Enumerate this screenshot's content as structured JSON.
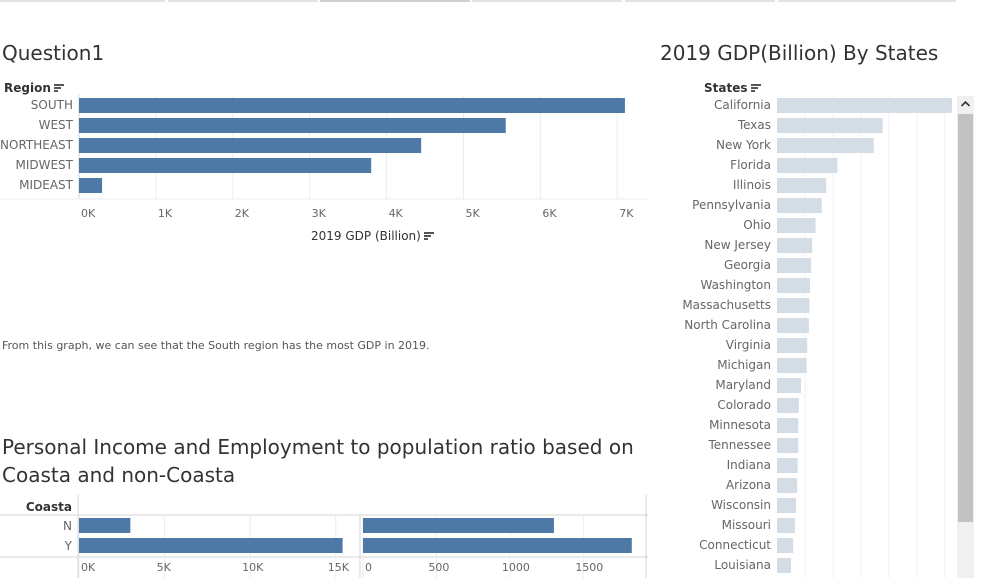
{
  "chart_data": [
    {
      "type": "bar",
      "orientation": "horizontal",
      "title": "Question1",
      "category_header": "Region",
      "xlabel": "2019 GDP (Billion)",
      "categories": [
        "SOUTH",
        "WEST",
        "NORTHEAST",
        "MIDWEST",
        "MIDEAST"
      ],
      "values": [
        7100,
        5550,
        4450,
        3800,
        300
      ],
      "xlim": [
        0,
        7400
      ],
      "xticks": [
        0,
        1000,
        2000,
        3000,
        4000,
        5000,
        6000,
        7000
      ],
      "xtick_labels": [
        "0K",
        "1K",
        "2K",
        "3K",
        "4K",
        "5K",
        "6K",
        "7K"
      ],
      "grid": true,
      "color": "#4e79a7"
    },
    {
      "type": "bar",
      "orientation": "horizontal",
      "title": "2019 GDP(Billion) By States",
      "category_header": "States",
      "categories": [
        "California",
        "Texas",
        "New York",
        "Florida",
        "Illinois",
        "Pennsylvania",
        "Ohio",
        "New Jersey",
        "Georgia",
        "Washington",
        "Massachusetts",
        "North Carolina",
        "Virginia",
        "Michigan",
        "Maryland",
        "Colorado",
        "Minnesota",
        "Tennessee",
        "Indiana",
        "Arizona",
        "Wisconsin",
        "Missouri",
        "Connecticut",
        "Louisiana"
      ],
      "values": [
        3130,
        1890,
        1730,
        1080,
        880,
        800,
        690,
        630,
        610,
        590,
        580,
        570,
        540,
        530,
        430,
        390,
        380,
        380,
        370,
        360,
        340,
        320,
        290,
        250
      ],
      "xlim": [
        0,
        3200
      ],
      "grid": true,
      "color": "#d4dde6"
    },
    {
      "type": "bar",
      "orientation": "horizontal",
      "title": "Personal Income and Employment to population ratio based on Coasta and non-Coasta",
      "category_header": "Coasta",
      "categories": [
        "N",
        "Y"
      ],
      "panels": [
        {
          "values": [
            3000,
            15400
          ],
          "xlim": [
            0,
            16300
          ],
          "xticks": [
            0,
            5000,
            10000,
            15000
          ],
          "xtick_labels": [
            "0K",
            "5K",
            "10K",
            "15K"
          ]
        },
        {
          "values": [
            1300,
            1830
          ],
          "xlim": [
            0,
            1920
          ],
          "xticks": [
            0,
            500,
            1000,
            1500
          ],
          "xtick_labels": [
            "0",
            "500",
            "1000",
            "1500"
          ]
        }
      ],
      "grid": true,
      "color": "#4e79a7"
    }
  ],
  "note": "From this graph, we can see that the South region has the most GDP in 2019.",
  "colors": {
    "bar_blue": "#4e79a7",
    "bar_light": "#d4dde6",
    "grid": "#ececec",
    "axis_text": "#666666"
  },
  "icons": {
    "sort": "sort-descending-icon",
    "scroll_up": "chevron-up-icon"
  }
}
